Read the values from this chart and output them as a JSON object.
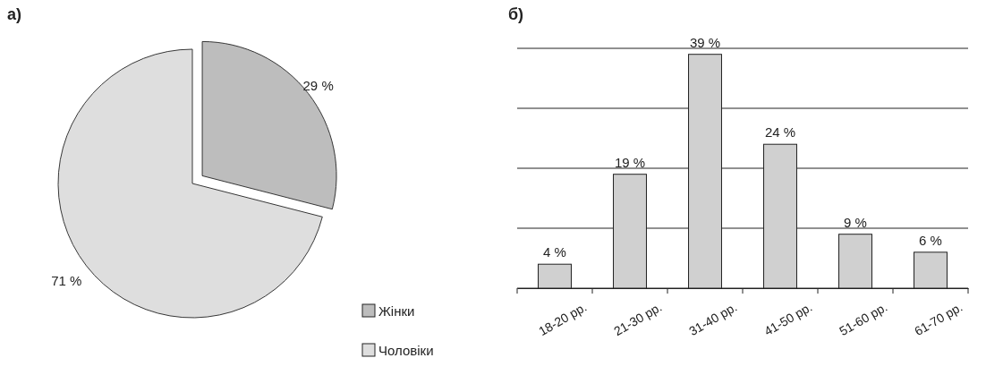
{
  "chart_data": [
    {
      "type": "pie",
      "title": "а)",
      "categories": [
        "Жінки",
        "Чоловіки"
      ],
      "values": [
        29,
        71
      ],
      "colors": [
        "#bdbdbd",
        "#dedede"
      ],
      "value_labels": [
        "29 %",
        "71 %"
      ],
      "legend": "bottom right"
    },
    {
      "type": "bar",
      "title": "б)",
      "categories": [
        "18-20 рр.",
        "21-30 рр.",
        "31-40 рр.",
        "41-50 рр.",
        "51-60 рр.",
        "61-70 рр."
      ],
      "values": [
        4,
        19,
        39,
        24,
        9,
        6
      ],
      "value_labels": [
        "4 %",
        "19 %",
        "39 %",
        "24 %",
        "9 %",
        "6 %"
      ],
      "color": "#d0d0d0",
      "ylim": [
        0,
        40
      ],
      "yticks": [
        {
          "value": 0,
          "label": null
        },
        {
          "value": 10,
          "label": null
        },
        {
          "value": 20,
          "label": null
        },
        {
          "value": 30,
          "label": null
        },
        {
          "value": 40,
          "label": null
        }
      ],
      "grid": "y",
      "tick_labels": "x"
    }
  ]
}
